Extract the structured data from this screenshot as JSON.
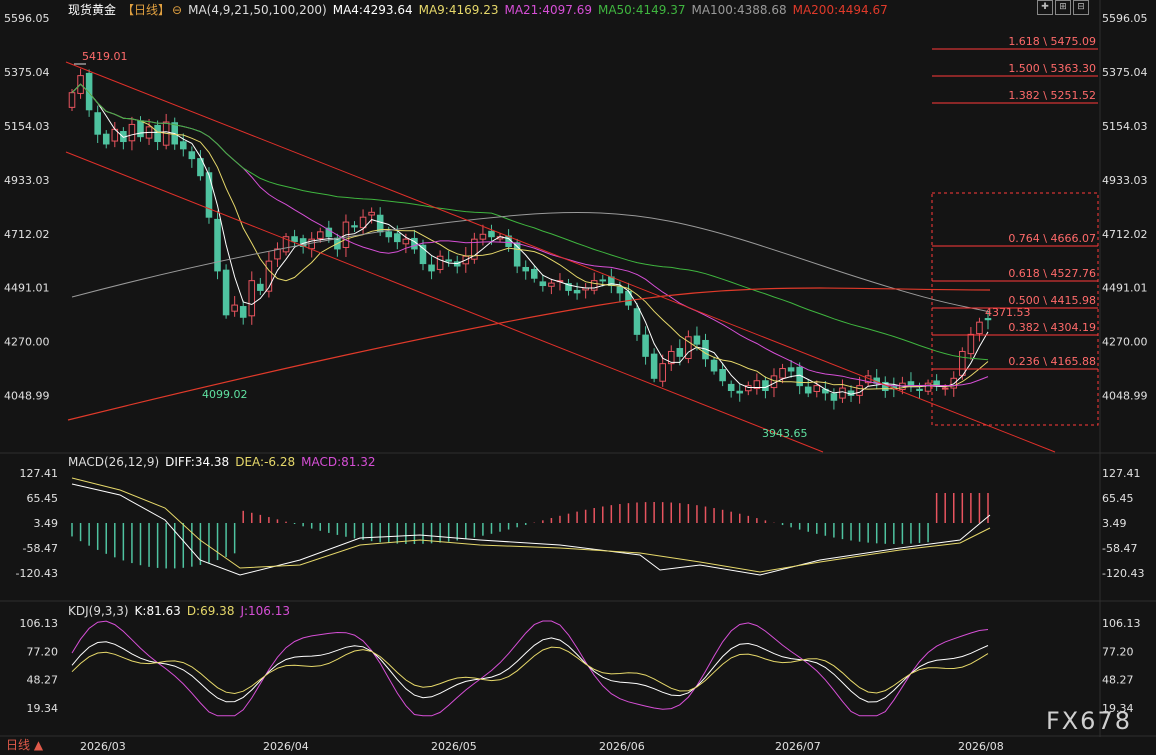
{
  "header": {
    "symbol": "现货黄金",
    "period_tag": "【日线】",
    "ma_params": "MA(4,9,21,50,100,200)",
    "ma4": "MA4:4293.64",
    "ma9": "MA9:4169.23",
    "ma21": "MA21:4097.69",
    "ma50": "MA50:4149.37",
    "ma100": "MA100:4388.68",
    "ma200": "MA200:4494.67"
  },
  "colors": {
    "up": "#e8545f",
    "down": "#4fc3a0",
    "ma4": "#ffffff",
    "ma9": "#e6d86a",
    "ma21": "#d64fd6",
    "ma50": "#3fb53f",
    "ma100": "#9a9a9a",
    "ma200": "#e03a2a",
    "trend": "#e0302a",
    "fib": "#ff3a3a"
  },
  "macd": {
    "title": "MACD(26,12,9)",
    "diff": "DIFF:34.38",
    "dea": "DEA:-6.28",
    "macd": "MACD:81.32"
  },
  "kdj": {
    "title": "KDJ(9,3,3)",
    "k": "K:81.63",
    "d": "D:69.38",
    "j": "J:106.13"
  },
  "watermark": "FX678",
  "period_label": "日线 ▲",
  "chart_data": [
    {
      "type": "candlestick",
      "title": "现货黄金",
      "y_ticks": [
        "5596.05",
        "5375.04",
        "5154.03",
        "4933.03",
        "4712.02",
        "4491.01",
        "4270.00",
        "4048.99"
      ],
      "ylim": [
        4048.99,
        5596.05
      ],
      "x_ticks": [
        "2026/03",
        "2026/04",
        "2026/05",
        "2026/06",
        "2026/07",
        "2026/08"
      ],
      "closes": [
        5290,
        5360,
        5220,
        5120,
        5080,
        5140,
        5090,
        5160,
        5110,
        5150,
        5090,
        5170,
        5080,
        5060,
        5020,
        4950,
        4780,
        4560,
        4380,
        4420,
        4370,
        4520,
        4480,
        4600,
        4650,
        4700,
        4680,
        4660,
        4690,
        4720,
        4700,
        4650,
        4760,
        4740,
        4780,
        4800,
        4720,
        4700,
        4680,
        4690,
        4650,
        4590,
        4560,
        4620,
        4600,
        4580,
        4620,
        4690,
        4710,
        4700,
        4700,
        4660,
        4580,
        4560,
        4530,
        4500,
        4510,
        4520,
        4480,
        4470,
        4490,
        4520,
        4520,
        4500,
        4470,
        4420,
        4300,
        4210,
        4120,
        4180,
        4230,
        4210,
        4290,
        4260,
        4200,
        4150,
        4110,
        4070,
        4060,
        4090,
        4110,
        4070,
        4130,
        4160,
        4150,
        4090,
        4060,
        4090,
        4060,
        4030,
        4080,
        4050,
        4090,
        4130,
        4100,
        4070,
        4080,
        4100,
        4090,
        4070,
        4100,
        4090,
        4080,
        4120,
        4230,
        4300,
        4350,
        4360
      ],
      "annotations": [
        "5419.01",
        "4099.02",
        "3943.65",
        "4371.53"
      ],
      "fibonacci": [
        "1.618 \\ 5475.09",
        "1.500 \\ 5363.30",
        "1.382 \\ 5251.52",
        "0.764 \\ 4666.07",
        "0.618 \\ 4527.76",
        "0.500 \\ 4415.98",
        "0.382 \\ 4304.19",
        "0.236 \\ 4165.88"
      ]
    },
    {
      "type": "bar",
      "title": "MACD(26,12,9)",
      "y_ticks": [
        "127.41",
        "65.45",
        "3.49",
        "-58.47",
        "-120.43"
      ],
      "ylim": [
        -120.43,
        127.41
      ],
      "series_names": [
        "DIFF",
        "DEA",
        "MACD"
      ]
    },
    {
      "type": "line",
      "title": "KDJ(9,3,3)",
      "y_ticks": [
        "106.13",
        "77.20",
        "48.27",
        "19.34"
      ],
      "ylim": [
        19.34,
        106.13
      ],
      "series_names": [
        "K",
        "D",
        "J"
      ]
    }
  ]
}
